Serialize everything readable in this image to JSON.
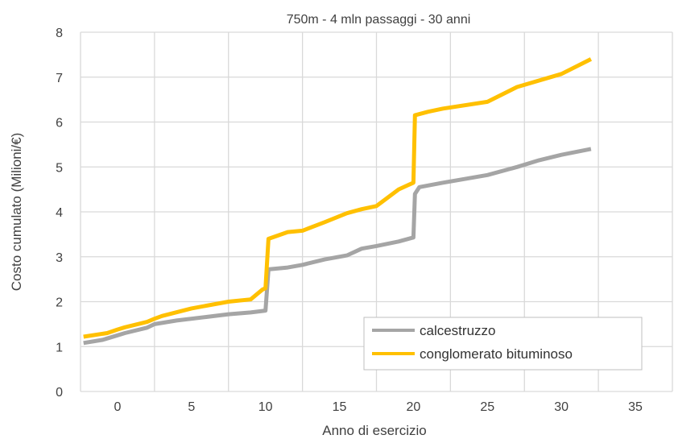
{
  "chart_data": {
    "type": "line",
    "title": "750m - 4 mln passaggi - 30 anni",
    "xlabel": "Anno di esercizio",
    "ylabel": "Costo cumulato (Milioni/€)",
    "xlim": [
      -2.5,
      37.5
    ],
    "ylim": [
      0,
      8
    ],
    "xticks": [
      0,
      5,
      10,
      15,
      20,
      25,
      30,
      35
    ],
    "yticks": [
      0,
      1,
      2,
      3,
      4,
      5,
      6,
      7,
      8
    ],
    "x_gridlines": [
      -2.5,
      2.5,
      7.5,
      12.5,
      17.5,
      22.5,
      27.5,
      32.5,
      37.5
    ],
    "grid": true,
    "legend": {
      "position": "bottom-right"
    },
    "series": [
      {
        "name": "calcestruzzo",
        "color": "#A5A5A5",
        "points": [
          [
            -2.3,
            1.08
          ],
          [
            -1.0,
            1.15
          ],
          [
            -0.7,
            1.18
          ],
          [
            0.0,
            1.25
          ],
          [
            0.5,
            1.3
          ],
          [
            2.0,
            1.42
          ],
          [
            2.5,
            1.5
          ],
          [
            4.0,
            1.58
          ],
          [
            6.0,
            1.66
          ],
          [
            7.5,
            1.72
          ],
          [
            9.0,
            1.76
          ],
          [
            10.0,
            1.8
          ],
          [
            10.2,
            2.72
          ],
          [
            11.5,
            2.76
          ],
          [
            12.5,
            2.82
          ],
          [
            14.0,
            2.94
          ],
          [
            15.5,
            3.03
          ],
          [
            16.5,
            3.18
          ],
          [
            17.5,
            3.24
          ],
          [
            19.0,
            3.34
          ],
          [
            20.0,
            3.43
          ],
          [
            20.1,
            4.4
          ],
          [
            20.4,
            4.55
          ],
          [
            22.0,
            4.65
          ],
          [
            25.0,
            4.82
          ],
          [
            27.0,
            5.0
          ],
          [
            28.5,
            5.15
          ],
          [
            30.0,
            5.27
          ],
          [
            32.0,
            5.4
          ]
        ]
      },
      {
        "name": "conglomerato bituminoso",
        "color": "#FFC000",
        "points": [
          [
            -2.3,
            1.22
          ],
          [
            -0.7,
            1.3
          ],
          [
            0.0,
            1.38
          ],
          [
            0.5,
            1.43
          ],
          [
            2.0,
            1.55
          ],
          [
            2.5,
            1.62
          ],
          [
            3.0,
            1.68
          ],
          [
            5.0,
            1.85
          ],
          [
            7.5,
            2.0
          ],
          [
            9.0,
            2.05
          ],
          [
            9.8,
            2.27
          ],
          [
            10.0,
            2.3
          ],
          [
            10.2,
            3.4
          ],
          [
            11.5,
            3.55
          ],
          [
            12.5,
            3.58
          ],
          [
            14.0,
            3.77
          ],
          [
            15.5,
            3.97
          ],
          [
            16.5,
            4.06
          ],
          [
            17.5,
            4.13
          ],
          [
            19.0,
            4.5
          ],
          [
            20.0,
            4.65
          ],
          [
            20.1,
            6.15
          ],
          [
            21.0,
            6.23
          ],
          [
            22.0,
            6.3
          ],
          [
            25.0,
            6.45
          ],
          [
            27.0,
            6.78
          ],
          [
            30.0,
            7.07
          ],
          [
            32.0,
            7.4
          ]
        ]
      }
    ]
  }
}
